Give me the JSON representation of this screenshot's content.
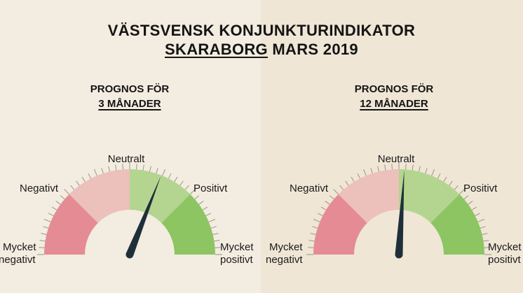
{
  "header": {
    "title_line1": "VÄSTSVENSK KONJUNKTURINDIKATOR",
    "region": "SKARABORG",
    "period": "MARS 2019"
  },
  "gauges": [
    {
      "title_line1": "PROGNOS FÖR",
      "title_line2": "3 MÅNADER",
      "needle_value": 0.62
    },
    {
      "title_line1": "PROGNOS FÖR",
      "title_line2": "12 MÅNADER",
      "needle_value": 0.52
    }
  ],
  "scale_labels": {
    "very_negative_1": "Mycket",
    "very_negative_2": "negativt",
    "negative": "Negativt",
    "neutral": "Neutralt",
    "positive": "Positivt",
    "very_positive_1": "Mycket",
    "very_positive_2": "positivt"
  },
  "colors": {
    "very_negative": "#e58b93",
    "negative": "#ecc0bb",
    "positive": "#b4d58f",
    "very_positive": "#8cc562",
    "needle": "#1f2f3a"
  }
}
